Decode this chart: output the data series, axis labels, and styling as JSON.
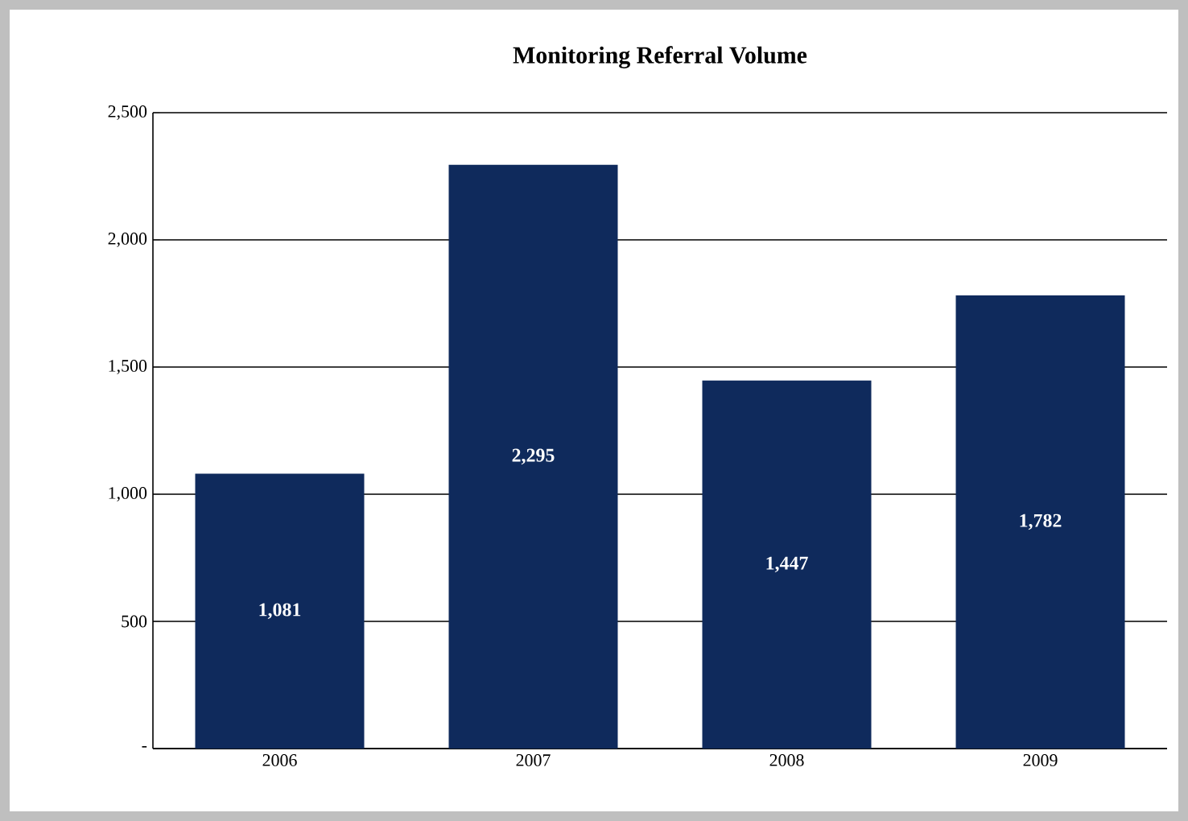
{
  "chart_data": {
    "type": "bar",
    "title": "Monitoring Referral Volume",
    "categories": [
      "2006",
      "2007",
      "2008",
      "2009"
    ],
    "values": [
      1081,
      2295,
      1447,
      1782
    ],
    "value_labels": [
      "1,081",
      "2,295",
      "1,447",
      "1,782"
    ],
    "color": "#0f2a5c",
    "ylim": [
      0,
      2500
    ],
    "yticks": [
      {
        "value": 0,
        "label": "-"
      },
      500,
      {
        "value": 1000,
        "label": "1,000"
      },
      {
        "value": 1500,
        "label": "1,500"
      },
      {
        "value": 2000,
        "label": "2,000"
      },
      {
        "value": 2500,
        "label": "2,500"
      }
    ],
    "grid": "y"
  }
}
